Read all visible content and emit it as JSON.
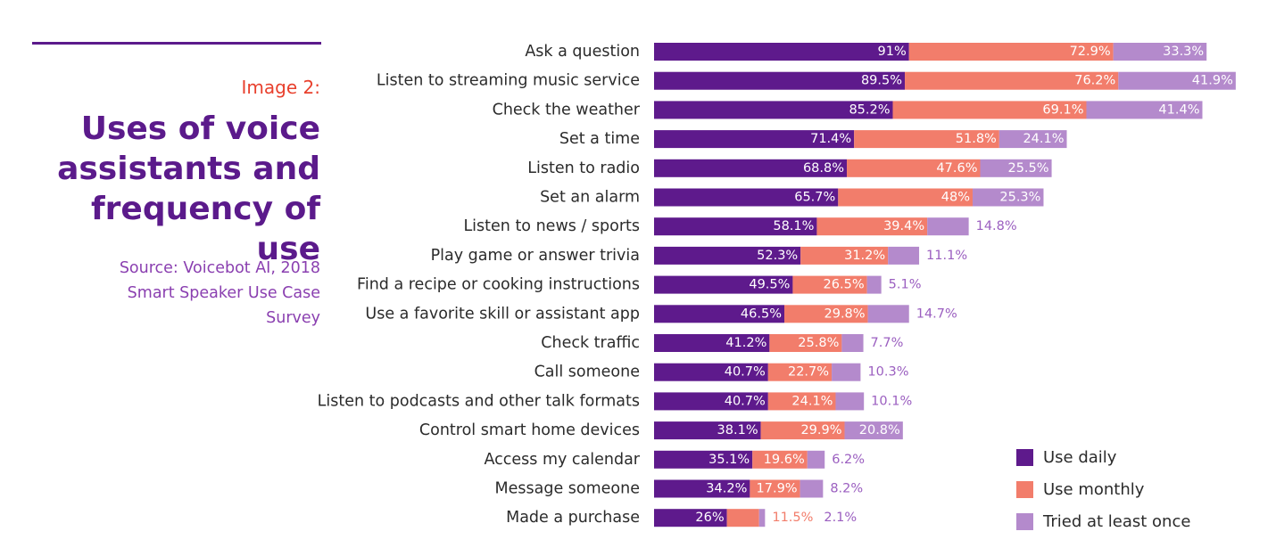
{
  "heading": {
    "label": "Image 2:",
    "title": "Uses of voice assistants and frequency of use",
    "source": "Source: Voicebot AI, 2018 Smart Speaker Use Case Survey"
  },
  "colors": {
    "daily": "#5e1a8c",
    "monthly": "#f27d6b",
    "once": "#b48acc",
    "once_label": "#9b5fc0",
    "monthly_label": "#f27d6b"
  },
  "legend": [
    {
      "label": "Use daily",
      "color": "#5e1a8c"
    },
    {
      "label": "Use monthly",
      "color": "#f27d6b"
    },
    {
      "label": "Tried at least once",
      "color": "#b48acc"
    }
  ],
  "chart_data": {
    "type": "bar",
    "orientation": "horizontal",
    "stacked": true,
    "categories": [
      "Ask a question",
      "Listen to streaming music service",
      "Check the weather",
      "Set a time",
      "Listen to radio",
      "Set an alarm",
      "Listen to news / sports",
      "Play game or answer trivia",
      "Find a recipe or cooking instructions",
      "Use a favorite skill or assistant app",
      "Check traffic",
      "Call someone",
      "Listen to podcasts and other talk formats",
      "Control smart home devices",
      "Access my calendar",
      "Message someone",
      "Made a purchase"
    ],
    "series": [
      {
        "name": "Use daily",
        "values": [
          91,
          89.5,
          85.2,
          71.4,
          68.8,
          65.7,
          58.1,
          52.3,
          49.5,
          46.5,
          41.2,
          40.7,
          40.7,
          38.1,
          35.1,
          34.2,
          26
        ]
      },
      {
        "name": "Use monthly",
        "values": [
          72.9,
          76.2,
          69.1,
          51.8,
          47.6,
          48,
          39.4,
          31.2,
          26.5,
          29.8,
          25.8,
          22.7,
          24.1,
          29.9,
          19.6,
          17.9,
          11.5
        ]
      },
      {
        "name": "Tried at least once",
        "values": [
          33.3,
          41.9,
          41.4,
          24.1,
          25.5,
          25.3,
          14.8,
          11.1,
          5.1,
          14.7,
          7.7,
          10.3,
          10.1,
          20.8,
          6.2,
          8.2,
          2.1
        ]
      }
    ],
    "labels": [
      [
        "91%",
        "72.9%",
        "33.3%"
      ],
      [
        "89.5%",
        "76.2%",
        "41.9%"
      ],
      [
        "85.2%",
        "69.1%",
        "41.4%"
      ],
      [
        "71.4%",
        "51.8%",
        "24.1%"
      ],
      [
        "68.8%",
        "47.6%",
        "25.5%"
      ],
      [
        "65.7%",
        "48%",
        "25.3%"
      ],
      [
        "58.1%",
        "39.4%",
        "14.8%"
      ],
      [
        "52.3%",
        "31.2%",
        "11.1%"
      ],
      [
        "49.5%",
        "26.5%",
        "5.1%"
      ],
      [
        "46.5%",
        "29.8%",
        "14.7%"
      ],
      [
        "41.2%",
        "25.8%",
        "7.7%"
      ],
      [
        "40.7%",
        "22.7%",
        "10.3%"
      ],
      [
        "40.7%",
        "24.1%",
        "10.1%"
      ],
      [
        "38.1%",
        "29.9%",
        "20.8%"
      ],
      [
        "35.1%",
        "19.6%",
        "6.2%"
      ],
      [
        "34.2%",
        "17.9%",
        "8.2%"
      ],
      [
        "26%",
        "11.5%",
        "2.1%"
      ]
    ],
    "legend_position": "bottom-right",
    "grid": false
  }
}
